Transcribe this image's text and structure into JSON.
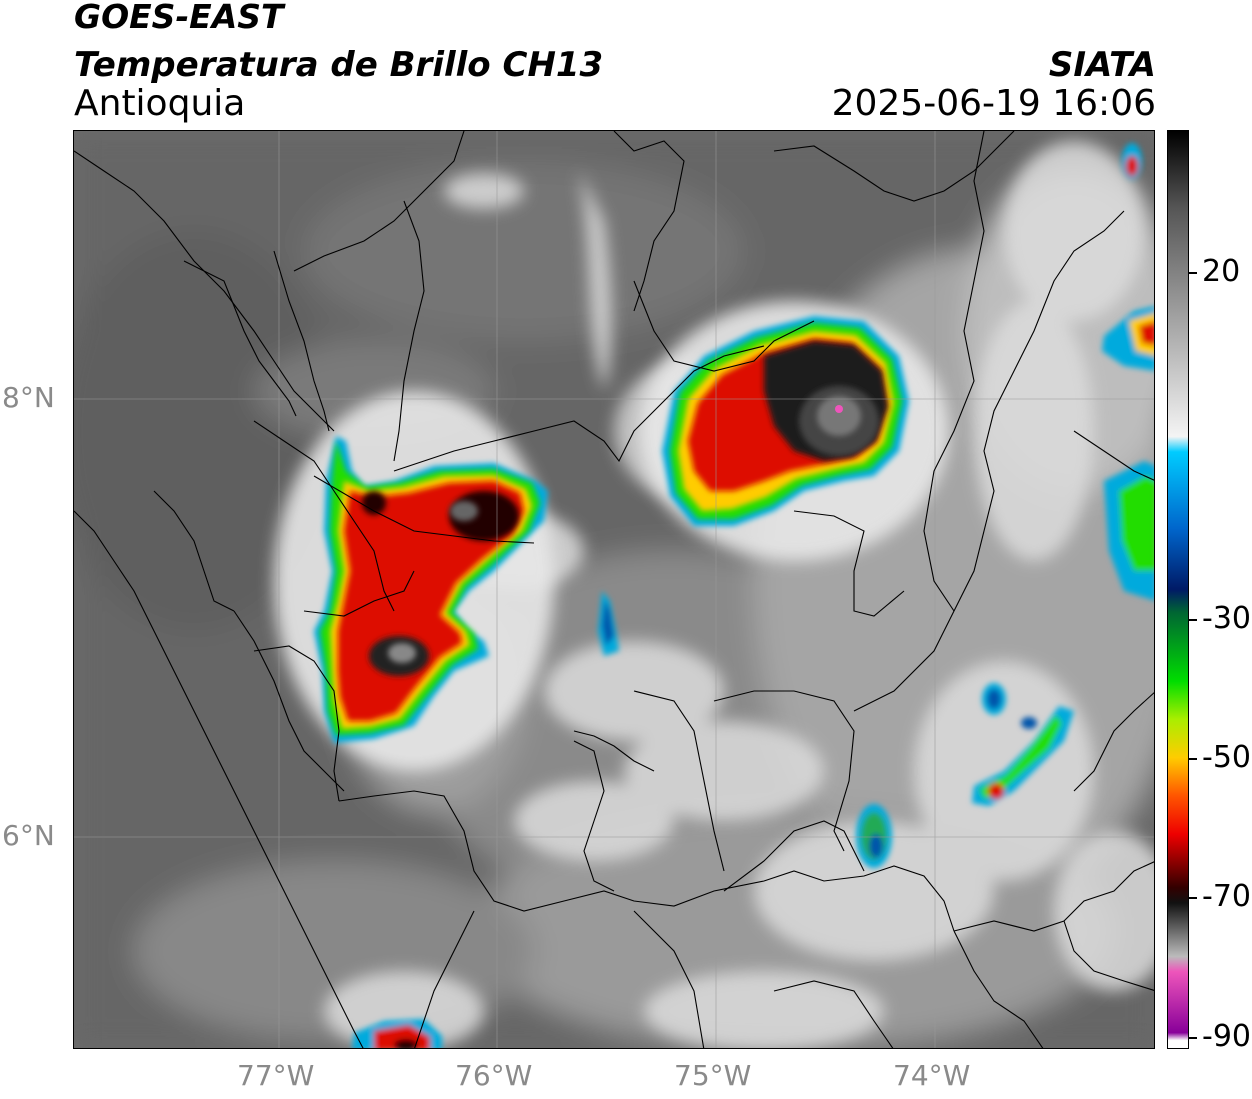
{
  "header": {
    "satellite": "GOES-EAST",
    "product": "Temperatura de Brillo CH13",
    "region": "Antioquia",
    "organization": "SIATA",
    "datetime": "2025-06-19 16:06"
  },
  "map_axes": {
    "longitude_ticks": [
      "77°W",
      "76°W",
      "75°W",
      "74°W"
    ],
    "latitude_ticks": [
      "8°N",
      "6°N"
    ],
    "grid": true
  },
  "colorbar": {
    "units_shown": false,
    "tick_labels": [
      "20",
      "-30",
      "-50",
      "-70",
      "-90"
    ],
    "range": [
      -90,
      30
    ],
    "stops": [
      {
        "value": 30,
        "color": "#000000"
      },
      {
        "value": 20,
        "color": "#555555"
      },
      {
        "value": -10,
        "color": "#f4f4f4"
      },
      {
        "value": -12,
        "color": "#00ccff"
      },
      {
        "value": -22,
        "color": "#0066cc"
      },
      {
        "value": -30,
        "color": "#001a66"
      },
      {
        "value": -33,
        "color": "#006633"
      },
      {
        "value": -42,
        "color": "#00dd00"
      },
      {
        "value": -47,
        "color": "#aaee00"
      },
      {
        "value": -52,
        "color": "#ffcc00"
      },
      {
        "value": -57,
        "color": "#ff5500"
      },
      {
        "value": -62,
        "color": "#ee0000"
      },
      {
        "value": -69,
        "color": "#330000"
      },
      {
        "value": -71,
        "color": "#111111"
      },
      {
        "value": -78,
        "color": "#bbbbbb"
      },
      {
        "value": -80,
        "color": "#ee55bb"
      },
      {
        "value": -88,
        "color": "#880099"
      },
      {
        "value": -89,
        "color": "#ffffff"
      }
    ]
  },
  "colors": {
    "land_gray": "#6b6b6b",
    "cloud_white": "#e8e8e8",
    "storm_red": "#dd1100",
    "storm_core": "#1a1a1a",
    "edge_green": "#22dd00",
    "edge_cyan": "#00bbee",
    "border_line": "#000000",
    "label_gray": "#8a8a8a"
  }
}
